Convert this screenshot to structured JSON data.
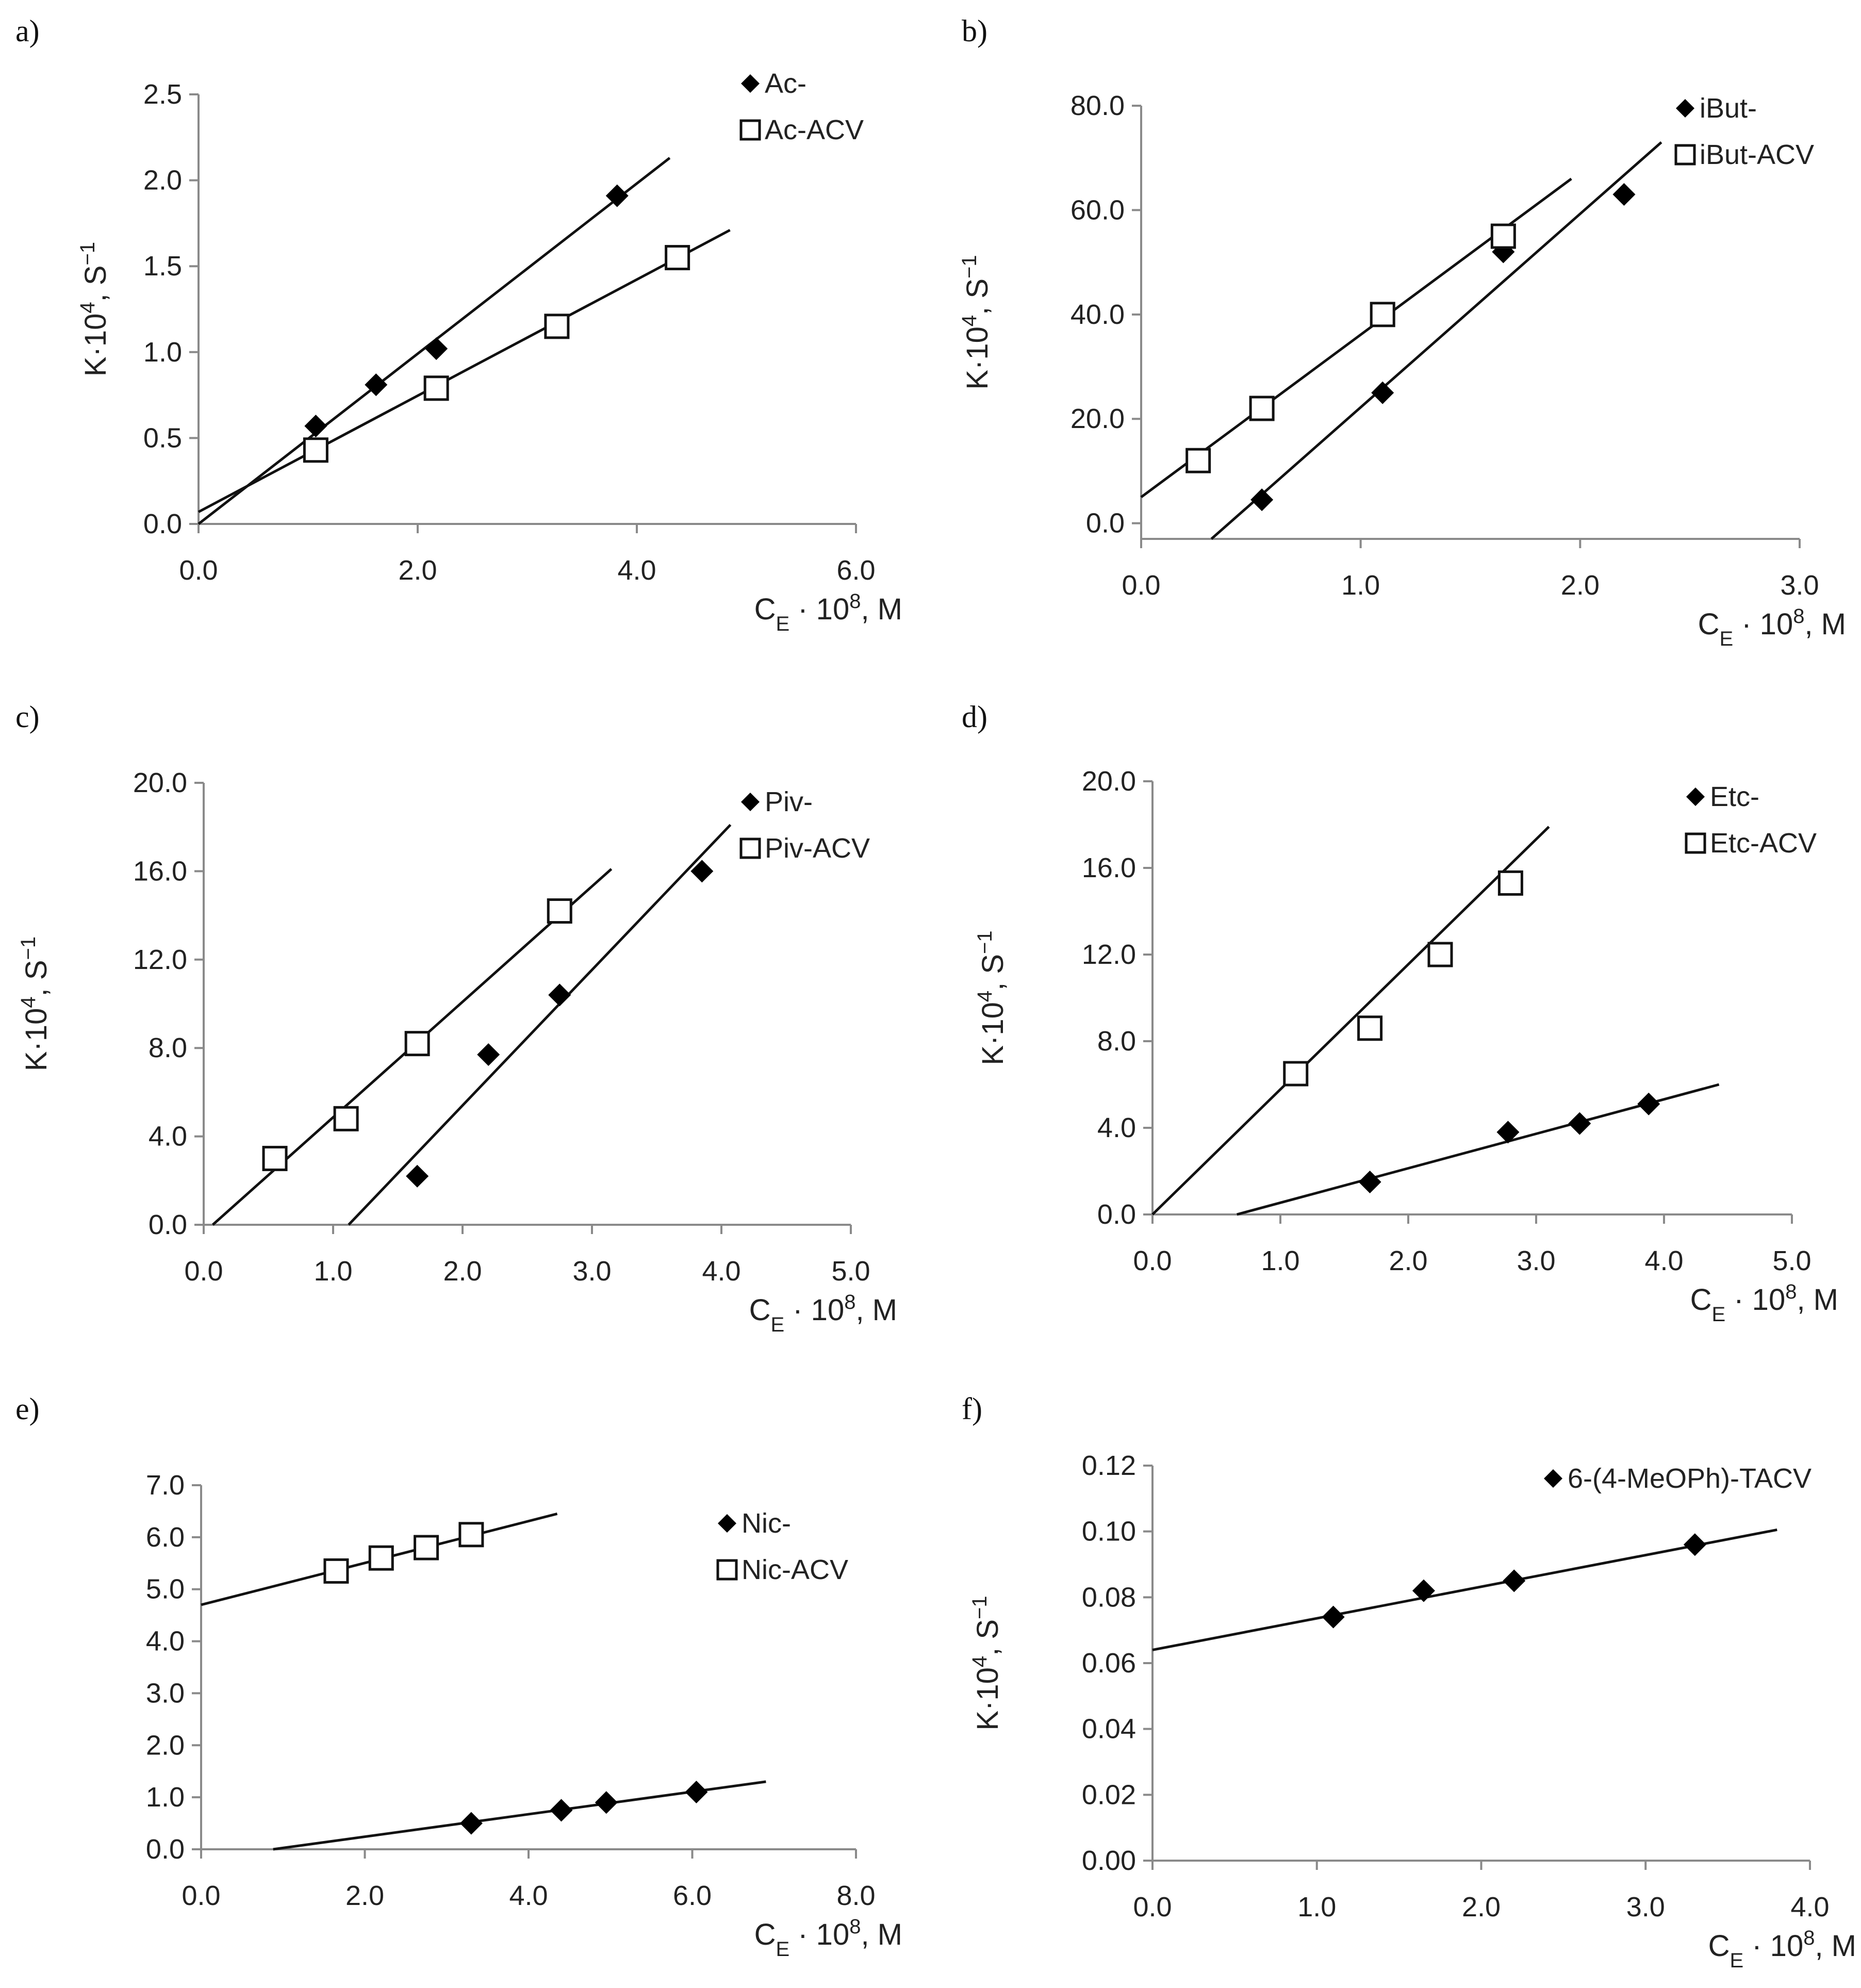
{
  "chart_data": [
    {
      "panel": "a)",
      "type": "scatter",
      "xlabel": "C_E · 10^8, M",
      "ylabel": "K·10^4, S^-1",
      "xlim": [
        0,
        6
      ],
      "ylim": [
        0,
        2.5
      ],
      "xticks": [
        0,
        2,
        4,
        6
      ],
      "xtick_labels": [
        "0.0",
        "2.0",
        "4.0",
        "6.0"
      ],
      "yticks": [
        0,
        0.5,
        1,
        1.5,
        2,
        2.5
      ],
      "ytick_labels": [
        "0.0",
        "0.5",
        "1.0",
        "1.5",
        "2.0",
        "2.5"
      ],
      "legend_position": "top-right",
      "series": [
        {
          "name": "Ac-",
          "marker": "diamond",
          "x": [
            1.07,
            1.62,
            2.17,
            3.82
          ],
          "y": [
            0.57,
            0.81,
            1.02,
            1.91
          ],
          "fit": [
            [
              0,
              0.0
            ],
            [
              4.3,
              2.13
            ]
          ]
        },
        {
          "name": "Ac-ACV",
          "marker": "square",
          "x": [
            1.07,
            2.17,
            3.27,
            4.37
          ],
          "y": [
            0.43,
            0.79,
            1.15,
            1.55
          ],
          "fit": [
            [
              0,
              0.07
            ],
            [
              4.85,
              1.71
            ]
          ]
        }
      ]
    },
    {
      "panel": "b)",
      "type": "scatter",
      "xlabel": "C_E · 10^8, M",
      "ylabel": "K·10^4, S^-1",
      "xlim": [
        0,
        3
      ],
      "ylim": [
        -3,
        80
      ],
      "xticks": [
        0,
        1,
        2,
        3
      ],
      "xtick_labels": [
        "0.0",
        "1.0",
        "2.0",
        "3.0"
      ],
      "yticks": [
        0,
        20,
        40,
        60,
        80
      ],
      "ytick_labels": [
        "0.0",
        "20.0",
        "40.0",
        "60.0",
        "80.0"
      ],
      "legend_position": "top-right",
      "series": [
        {
          "name": "iBut-",
          "marker": "diamond",
          "x": [
            0.55,
            1.1,
            1.65,
            2.2
          ],
          "y": [
            4.5,
            25,
            52,
            63
          ],
          "fit": [
            [
              0.32,
              -3
            ],
            [
              2.37,
              73
            ]
          ]
        },
        {
          "name": "iBut-ACV",
          "marker": "square",
          "x": [
            0.26,
            0.55,
            1.1,
            1.65
          ],
          "y": [
            12,
            22,
            40,
            55
          ],
          "fit": [
            [
              0,
              5
            ],
            [
              1.96,
              66
            ]
          ]
        }
      ]
    },
    {
      "panel": "c)",
      "type": "scatter",
      "xlabel": "C_E · 10^8, M",
      "ylabel": "K·10^4, S^-1",
      "xlim": [
        0,
        5
      ],
      "ylim": [
        0,
        20
      ],
      "xticks": [
        0,
        1,
        2,
        3,
        4,
        5
      ],
      "xtick_labels": [
        "0.0",
        "1.0",
        "2.0",
        "3.0",
        "4.0",
        "5.0"
      ],
      "yticks": [
        0,
        4,
        8,
        12,
        16,
        20
      ],
      "ytick_labels": [
        "0.0",
        "4.0",
        "8.0",
        "12.0",
        "16.0",
        "20.0"
      ],
      "legend_position": "top-right",
      "series": [
        {
          "name": "Piv-",
          "marker": "diamond",
          "x": [
            1.65,
            2.2,
            2.75,
            3.85
          ],
          "y": [
            2.2,
            7.7,
            10.4,
            16.0
          ],
          "fit": [
            [
              1.12,
              0
            ],
            [
              4.07,
              18.1
            ]
          ]
        },
        {
          "name": "Piv-ACV",
          "marker": "square",
          "x": [
            0.55,
            1.1,
            1.65,
            2.75
          ],
          "y": [
            3.0,
            4.8,
            8.2,
            14.2
          ],
          "fit": [
            [
              0.07,
              0
            ],
            [
              3.15,
              16.1
            ]
          ]
        }
      ]
    },
    {
      "panel": "d)",
      "type": "scatter",
      "xlabel": "C_E · 10^8, M",
      "ylabel": "K·10^4, S^-1",
      "xlim": [
        0,
        5
      ],
      "ylim": [
        0,
        20
      ],
      "xticks": [
        0,
        1,
        2,
        3,
        4,
        5
      ],
      "xtick_labels": [
        "0.0",
        "1.0",
        "2.0",
        "3.0",
        "4.0",
        "5.0"
      ],
      "yticks": [
        0,
        4,
        8,
        12,
        16,
        20
      ],
      "ytick_labels": [
        "0.0",
        "4.0",
        "8.0",
        "12.0",
        "16.0",
        "20.0"
      ],
      "legend_position": "top-right",
      "series": [
        {
          "name": "Etc-",
          "marker": "diamond",
          "x": [
            1.7,
            2.78,
            3.34,
            3.88
          ],
          "y": [
            1.5,
            3.8,
            4.2,
            5.1
          ],
          "fit": [
            [
              0.66,
              0
            ],
            [
              4.43,
              6.0
            ]
          ]
        },
        {
          "name": "Etc-ACV",
          "marker": "square",
          "x": [
            1.12,
            1.7,
            2.25,
            2.8
          ],
          "y": [
            6.5,
            8.6,
            12.0,
            15.3
          ],
          "fit": [
            [
              0,
              0
            ],
            [
              3.1,
              17.9
            ]
          ]
        }
      ]
    },
    {
      "panel": "e)",
      "type": "scatter",
      "xlabel": "C_E · 10^8, M",
      "ylabel": "",
      "xlim": [
        0,
        8
      ],
      "ylim": [
        0,
        7
      ],
      "xticks": [
        0,
        2,
        4,
        6,
        8
      ],
      "xtick_labels": [
        "0.0",
        "2.0",
        "4.0",
        "6.0",
        "8.0"
      ],
      "yticks": [
        0,
        1,
        2,
        3,
        4,
        5,
        6,
        7
      ],
      "ytick_labels": [
        "0.0",
        "1.0",
        "2.0",
        "3.0",
        "4.0",
        "5.0",
        "6.0",
        "7.0"
      ],
      "legend_position": "top-right",
      "series": [
        {
          "name": "Nic-",
          "marker": "diamond",
          "x": [
            3.3,
            4.4,
            4.95,
            6.05
          ],
          "y": [
            0.5,
            0.75,
            0.9,
            1.1
          ],
          "fit": [
            [
              0.88,
              0
            ],
            [
              6.9,
              1.3
            ]
          ]
        },
        {
          "name": "Nic-ACV",
          "marker": "square",
          "x": [
            1.65,
            2.2,
            2.75,
            3.3
          ],
          "y": [
            5.35,
            5.6,
            5.8,
            6.05
          ],
          "fit": [
            [
              0,
              4.7
            ],
            [
              4.35,
              6.45
            ]
          ]
        }
      ]
    },
    {
      "panel": "f)",
      "type": "scatter",
      "xlabel": "C_E · 10^8, M",
      "ylabel": "K·10^4, S^-1",
      "xlim": [
        0,
        4
      ],
      "ylim": [
        0,
        0.12
      ],
      "xticks": [
        0,
        1,
        2,
        3,
        4
      ],
      "xtick_labels": [
        "0.0",
        "1.0",
        "2.0",
        "3.0",
        "4.0"
      ],
      "yticks": [
        0,
        0.02,
        0.04,
        0.06,
        0.08,
        0.1,
        0.12
      ],
      "ytick_labels": [
        "0.00",
        "0.02",
        "0.04",
        "0.06",
        "0.08",
        "0.10",
        "0.12"
      ],
      "legend_position": "top-right",
      "series": [
        {
          "name": "6-(4-MeOPh)-TACV",
          "marker": "diamond",
          "x": [
            1.1,
            1.65,
            2.2,
            3.3
          ],
          "y": [
            0.074,
            0.082,
            0.085,
            0.096
          ],
          "fit": [
            [
              0,
              0.064
            ],
            [
              3.8,
              0.1005
            ]
          ]
        }
      ]
    }
  ]
}
